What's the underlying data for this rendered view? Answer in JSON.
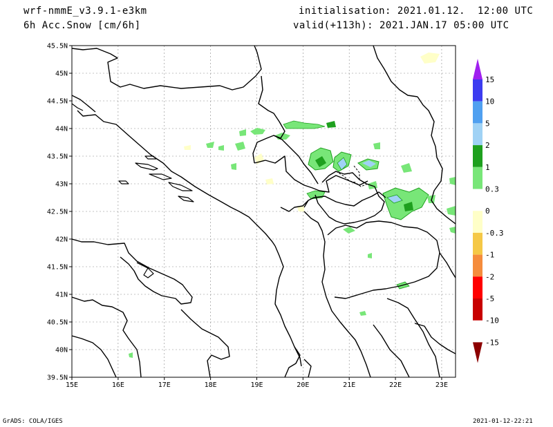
{
  "header": {
    "model": "wrf-nmmE_v3.9.1-e3km",
    "field": "6h Acc.Snow [cm/6h]",
    "init": "initialisation: 2021.01.12.  12:00 UTC",
    "valid": "valid(+113h): 2021.JAN.17 05:00 UTC"
  },
  "footer": {
    "left": "GrADS: COLA/IGES",
    "right": "2021-01-12-22:21"
  },
  "map": {
    "lat_labels": [
      "45.5N",
      "45N",
      "44.5N",
      "44N",
      "43.5N",
      "43N",
      "42.5N",
      "42N",
      "41.5N",
      "41N",
      "40.5N",
      "40N",
      "39.5N"
    ],
    "lon_labels": [
      "15E",
      "16E",
      "17E",
      "18E",
      "19E",
      "20E",
      "21E",
      "22E",
      "23E"
    ],
    "lat_range": [
      39.5,
      45.5
    ],
    "lon_range": [
      15,
      23.3
    ],
    "grid": "dotted"
  },
  "colorbar": {
    "levels": [
      "15",
      "10",
      "5",
      "2",
      "1",
      "0.3",
      "0",
      "-0.3",
      "-1",
      "-2",
      "-5",
      "-10",
      "-15"
    ],
    "colors": [
      "#a020f0",
      "#3c3cf0",
      "#50a0f0",
      "#a0d2f5",
      "#1ea01e",
      "#78e678",
      "#ffffff",
      "#ffffc8",
      "#f5c846",
      "#f58c3c",
      "#ff0000",
      "#c80000",
      "#8c0000"
    ]
  }
}
